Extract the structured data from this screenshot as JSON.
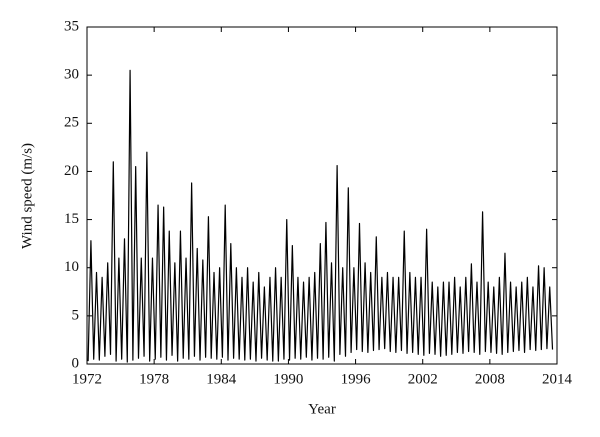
{
  "chart_data": {
    "type": "line",
    "x_label": "Year",
    "y_label": "Wind speed (m/s)",
    "xlim": [
      1972,
      2014
    ],
    "xticks": [
      1972,
      1978,
      1984,
      1990,
      1996,
      2002,
      2008,
      2014
    ],
    "ylim": [
      0,
      35
    ],
    "yticks": [
      0,
      5,
      10,
      15,
      20,
      25,
      30,
      35
    ],
    "series": [
      {
        "color": "#000000",
        "x": [
          1972.1,
          1972.35,
          1972.6,
          1972.85,
          1973.1,
          1973.35,
          1973.6,
          1973.85,
          1974.1,
          1974.35,
          1974.6,
          1974.85,
          1975.1,
          1975.35,
          1975.6,
          1975.85,
          1976.1,
          1976.35,
          1976.6,
          1976.85,
          1977.1,
          1977.35,
          1977.6,
          1977.85,
          1978.1,
          1978.35,
          1978.6,
          1978.85,
          1979.1,
          1979.35,
          1979.6,
          1979.85,
          1980.1,
          1980.35,
          1980.6,
          1980.85,
          1981.1,
          1981.35,
          1981.6,
          1981.85,
          1982.1,
          1982.35,
          1982.6,
          1982.85,
          1983.1,
          1983.35,
          1983.6,
          1983.85,
          1984.1,
          1984.35,
          1984.6,
          1984.85,
          1985.1,
          1985.35,
          1985.6,
          1985.85,
          1986.1,
          1986.35,
          1986.6,
          1986.85,
          1987.1,
          1987.35,
          1987.6,
          1987.85,
          1988.1,
          1988.35,
          1988.6,
          1988.85,
          1989.1,
          1989.35,
          1989.6,
          1989.85,
          1990.1,
          1990.35,
          1990.6,
          1990.85,
          1991.1,
          1991.35,
          1991.6,
          1991.85,
          1992.1,
          1992.35,
          1992.6,
          1992.85,
          1993.1,
          1993.35,
          1993.6,
          1993.85,
          1994.1,
          1994.35,
          1994.6,
          1994.85,
          1995.1,
          1995.35,
          1995.6,
          1995.85,
          1996.1,
          1996.35,
          1996.6,
          1996.85,
          1997.1,
          1997.35,
          1997.6,
          1997.85,
          1998.1,
          1998.35,
          1998.6,
          1998.85,
          1999.1,
          1999.35,
          1999.6,
          1999.85,
          2000.1,
          2000.35,
          2000.6,
          2000.85,
          2001.1,
          2001.35,
          2001.6,
          2001.85,
          2002.1,
          2002.35,
          2002.6,
          2002.85,
          2003.1,
          2003.35,
          2003.6,
          2003.85,
          2004.1,
          2004.35,
          2004.6,
          2004.85,
          2005.1,
          2005.35,
          2005.6,
          2005.85,
          2006.1,
          2006.35,
          2006.6,
          2006.85,
          2007.1,
          2007.35,
          2007.6,
          2007.85,
          2008.1,
          2008.35,
          2008.6,
          2008.85,
          2009.1,
          2009.35,
          2009.6,
          2009.85,
          2010.1,
          2010.35,
          2010.6,
          2010.85,
          2011.1,
          2011.35,
          2011.6,
          2011.85,
          2012.1,
          2012.35,
          2012.6,
          2012.85,
          2013.1,
          2013.35,
          2013.6
        ],
        "values": [
          0.3,
          12.8,
          0.5,
          9.5,
          0.4,
          9,
          0.8,
          10.5,
          1,
          21,
          0.3,
          11,
          0.5,
          13,
          0.2,
          30.5,
          0.4,
          20.5,
          0.6,
          11,
          0.8,
          22,
          0.3,
          11,
          0.5,
          16.5,
          0.7,
          16.3,
          0.4,
          13.8,
          0.9,
          10.5,
          0.3,
          13.8,
          0.6,
          11,
          0.5,
          18.8,
          0.8,
          12,
          0.4,
          10.8,
          0.7,
          15.3,
          0.6,
          9.5,
          0.5,
          10,
          0.7,
          16.5,
          0.4,
          12.5,
          0.6,
          10,
          0.5,
          9,
          0.4,
          10,
          0.5,
          8.5,
          0.3,
          9.5,
          0.6,
          8,
          0.4,
          9,
          0.3,
          10,
          0.3,
          9,
          0.5,
          15,
          0.4,
          12.3,
          0.6,
          9,
          0.5,
          8.5,
          0.7,
          9,
          0.4,
          9.5,
          0.6,
          12.5,
          0.5,
          14.7,
          0.7,
          10.5,
          0.3,
          20.6,
          1,
          10,
          0.8,
          18.3,
          1.2,
          10,
          1.5,
          14.6,
          1.3,
          10.5,
          1.2,
          9.5,
          1.4,
          13.2,
          1.5,
          9,
          1.6,
          9.5,
          1.3,
          9,
          1.2,
          9,
          1.4,
          13.8,
          1.1,
          9.5,
          1.2,
          9,
          1,
          9,
          0.9,
          14,
          1.1,
          8.5,
          1,
          8,
          0.8,
          8.5,
          0.9,
          8.5,
          1,
          9,
          1.2,
          8,
          1.1,
          9,
          1.3,
          10.4,
          1.2,
          8.5,
          1,
          15.8,
          1.3,
          8.5,
          1.2,
          8,
          1.1,
          9,
          1,
          11.5,
          1.2,
          8.5,
          1.3,
          8,
          1.4,
          8.5,
          1.2,
          9,
          1.5,
          8,
          1.4,
          10.2,
          1.5,
          10,
          1.6,
          8,
          1.5
        ]
      }
    ]
  }
}
